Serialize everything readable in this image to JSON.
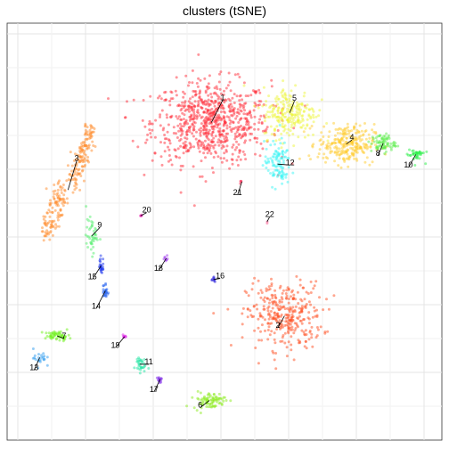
{
  "chart_data": {
    "type": "scatter",
    "title": "clusters (tSNE)",
    "xlabel": "",
    "ylabel": "",
    "xlim": [
      0,
      100
    ],
    "ylim": [
      0,
      100
    ],
    "grid": true,
    "legend": "none",
    "point_opacity": 0.5,
    "clusters": [
      {
        "id": "1",
        "color": "#FF2E3A",
        "x": 47.0,
        "y": 76.2,
        "spread": [
          11.0,
          8.0
        ],
        "n": 750,
        "shape": "disc",
        "label_at": [
          49.6,
          82.2
        ]
      },
      {
        "id": "2",
        "color": "#FF4D1F",
        "x": 63.8,
        "y": 29.8,
        "spread": [
          7.0,
          6.5
        ],
        "n": 330,
        "shape": "disc",
        "label_at": [
          62.3,
          27.6
        ]
      },
      {
        "id": "3",
        "color": "#FF8C2B",
        "x": 14.0,
        "y": 60.0,
        "spread": [
          3.5,
          8.0
        ],
        "n": 260,
        "shape": "arc",
        "label_at": [
          16.0,
          67.6
        ]
      },
      {
        "id": "4",
        "color": "#FFCC2E",
        "x": 78.0,
        "y": 71.0,
        "spread": [
          5.2,
          3.8
        ],
        "n": 260,
        "shape": "disc",
        "label_at": [
          79.3,
          72.6
        ]
      },
      {
        "id": "5",
        "color": "#EEF53B",
        "x": 65.0,
        "y": 78.5,
        "spread": [
          5.0,
          5.0
        ],
        "n": 230,
        "shape": "disc",
        "label_at": [
          66.1,
          82.0
        ]
      },
      {
        "id": "6",
        "color": "#8CEB1E",
        "x": 46.5,
        "y": 9.5,
        "spread": [
          3.0,
          1.6
        ],
        "n": 85,
        "shape": "disc",
        "label_at": [
          44.4,
          8.4
        ]
      },
      {
        "id": "7",
        "color": "#6EF11A",
        "x": 11.5,
        "y": 25.0,
        "spread": [
          2.3,
          0.9
        ],
        "n": 55,
        "shape": "disc",
        "label_at": [
          13.1,
          25.0
        ]
      },
      {
        "id": "8",
        "color": "#5BED4C",
        "x": 86.5,
        "y": 71.2,
        "spread": [
          2.2,
          1.8
        ],
        "n": 75,
        "shape": "disc",
        "label_at": [
          85.3,
          68.8
        ]
      },
      {
        "id": "9",
        "color": "#55F070",
        "x": 19.5,
        "y": 49.0,
        "spread": [
          1.1,
          3.2
        ],
        "n": 45,
        "shape": "disc",
        "label_at": [
          21.3,
          51.6
        ]
      },
      {
        "id": "10",
        "color": "#28F046",
        "x": 94.0,
        "y": 68.5,
        "spread": [
          1.6,
          1.4
        ],
        "n": 38,
        "shape": "disc",
        "label_at": [
          92.3,
          66.0
        ]
      },
      {
        "id": "11",
        "color": "#22E6A3",
        "x": 30.5,
        "y": 18.2,
        "spread": [
          1.0,
          1.6
        ],
        "n": 32,
        "shape": "disc",
        "label_at": [
          32.6,
          18.8
        ]
      },
      {
        "id": "12",
        "color": "#3CF5F5",
        "x": 62.2,
        "y": 66.2,
        "spread": [
          2.4,
          4.2
        ],
        "n": 110,
        "shape": "disc",
        "label_at": [
          65.1,
          66.6
        ]
      },
      {
        "id": "13",
        "color": "#2E9BF0",
        "x": 7.5,
        "y": 19.8,
        "spread": [
          1.2,
          1.8
        ],
        "n": 22,
        "shape": "disc",
        "label_at": [
          6.2,
          17.4
        ]
      },
      {
        "id": "14",
        "color": "#1C5BF0",
        "x": 22.6,
        "y": 35.8,
        "spread": [
          0.5,
          1.8
        ],
        "n": 22,
        "shape": "disc",
        "label_at": [
          20.5,
          32.2
        ]
      },
      {
        "id": "15",
        "color": "#1530EE",
        "x": 21.6,
        "y": 41.8,
        "spread": [
          0.5,
          1.8
        ],
        "n": 22,
        "shape": "disc",
        "label_at": [
          19.6,
          39.2
        ]
      },
      {
        "id": "16",
        "color": "#1A10D8",
        "x": 47.5,
        "y": 38.5,
        "spread": [
          0.3,
          0.5
        ],
        "n": 8,
        "shape": "disc",
        "label_at": [
          49.0,
          39.4
        ]
      },
      {
        "id": "17",
        "color": "#7A22E8",
        "x": 35.2,
        "y": 14.6,
        "spread": [
          0.6,
          0.7
        ],
        "n": 12,
        "shape": "disc",
        "label_at": [
          33.8,
          12.2
        ]
      },
      {
        "id": "18",
        "color": "#A23CF0",
        "x": 36.6,
        "y": 43.6,
        "spread": [
          0.5,
          0.5
        ],
        "n": 8,
        "shape": "disc",
        "label_at": [
          34.8,
          41.2
        ]
      },
      {
        "id": "19",
        "color": "#DD22E8",
        "x": 27.0,
        "y": 24.8,
        "spread": [
          0.4,
          0.5
        ],
        "n": 8,
        "shape": "disc",
        "label_at": [
          24.9,
          22.8
        ]
      },
      {
        "id": "20",
        "color": "#F02BB8",
        "x": 30.7,
        "y": 53.8,
        "spread": [
          0.3,
          0.2
        ],
        "n": 5,
        "shape": "disc",
        "label_at": [
          32.1,
          55.2
        ]
      },
      {
        "id": "21",
        "color": "#FF2E55",
        "x": 54.0,
        "y": 62.0,
        "spread": [
          0.4,
          0.4
        ],
        "n": 4,
        "shape": "disc",
        "label_at": [
          53.0,
          59.4
        ]
      },
      {
        "id": "22",
        "color": "#F55A8E",
        "x": 59.8,
        "y": 52.4,
        "spread": [
          0.2,
          0.2
        ],
        "n": 2,
        "shape": "disc",
        "label_at": [
          60.4,
          54.2
        ]
      }
    ]
  }
}
